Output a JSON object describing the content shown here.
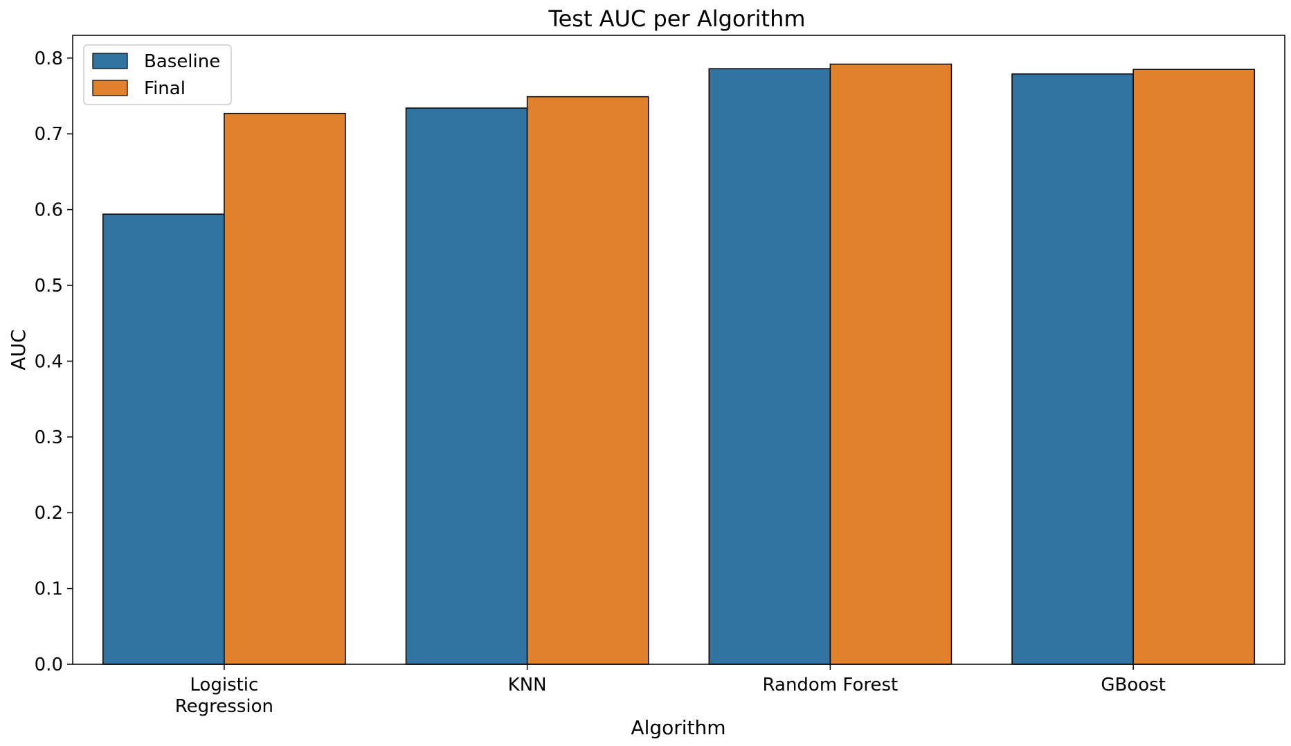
{
  "chart_data": {
    "type": "bar",
    "title": "Test AUC per Algorithm",
    "xlabel": "Algorithm",
    "ylabel": "AUC",
    "categories": [
      "Logistic\nRegression",
      "KNN",
      "Random Forest",
      "GBoost"
    ],
    "series": [
      {
        "name": "Baseline",
        "color": "#3274a1",
        "values": [
          0.594,
          0.734,
          0.786,
          0.779
        ]
      },
      {
        "name": "Final",
        "color": "#e1812c",
        "values": [
          0.727,
          0.749,
          0.792,
          0.785
        ]
      }
    ],
    "ylim": [
      0,
      0.83
    ],
    "yticks": [
      "0.0",
      "0.1",
      "0.2",
      "0.3",
      "0.4",
      "0.5",
      "0.6",
      "0.7",
      "0.8"
    ],
    "grid": false,
    "legend_position": "top-left"
  }
}
